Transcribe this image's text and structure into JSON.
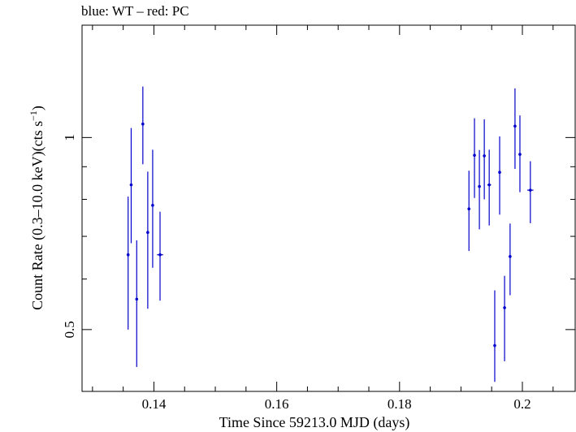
{
  "chart_data": {
    "type": "scatter",
    "title": "blue: WT – red: PC",
    "xlabel": "Time Since 59213.0 MJD (days)",
    "ylabel_main": "Count Rate (0.3–10.0 keV)(cts s",
    "ylabel_sup": "−1",
    "ylabel_close": ")",
    "xlim": [
      0.1283,
      0.2086
    ],
    "ylim": [
      0.4,
      1.5
    ],
    "y_scale": "log",
    "x_ticks": [
      {
        "value": 0.14,
        "label": "0.14"
      },
      {
        "value": 0.16,
        "label": "0.16"
      },
      {
        "value": 0.18,
        "label": "0.18"
      },
      {
        "value": 0.2,
        "label": "0.2"
      }
    ],
    "y_ticks": [
      {
        "value": 0.5,
        "label": "0.5"
      },
      {
        "value": 1,
        "label": "1"
      }
    ],
    "series": [
      {
        "color": "#0000cc",
        "points": [
          {
            "x": 0.1358,
            "y": 0.655,
            "ylo": 0.5,
            "yhi": 0.808,
            "xerr": 0.0002
          },
          {
            "x": 0.1363,
            "y": 0.843,
            "ylo": 0.683,
            "yhi": 1.035,
            "xerr": 0.0002
          },
          {
            "x": 0.1372,
            "y": 0.558,
            "ylo": 0.437,
            "yhi": 0.69,
            "xerr": 0.0002
          },
          {
            "x": 0.1382,
            "y": 1.05,
            "ylo": 0.908,
            "yhi": 1.202,
            "xerr": 0.0002
          },
          {
            "x": 0.139,
            "y": 0.71,
            "ylo": 0.539,
            "yhi": 0.884,
            "xerr": 0.0002
          },
          {
            "x": 0.1398,
            "y": 0.783,
            "ylo": 0.625,
            "yhi": 0.957,
            "xerr": 0.0002
          },
          {
            "x": 0.141,
            "y": 0.655,
            "ylo": 0.555,
            "yhi": 0.765,
            "xerr": 0.0005
          },
          {
            "x": 0.1913,
            "y": 0.773,
            "ylo": 0.664,
            "yhi": 0.887,
            "xerr": 0.0002
          },
          {
            "x": 0.1922,
            "y": 0.938,
            "ylo": 0.804,
            "yhi": 1.072,
            "xerr": 0.0002
          },
          {
            "x": 0.193,
            "y": 0.838,
            "ylo": 0.718,
            "yhi": 0.956,
            "xerr": 0.0002
          },
          {
            "x": 0.1938,
            "y": 0.936,
            "ylo": 0.8,
            "yhi": 1.068,
            "xerr": 0.0002
          },
          {
            "x": 0.1946,
            "y": 0.843,
            "ylo": 0.728,
            "yhi": 0.957,
            "xerr": 0.0003
          },
          {
            "x": 0.1955,
            "y": 0.472,
            "ylo": 0.414,
            "yhi": 0.576,
            "xerr": 0.0002
          },
          {
            "x": 0.1963,
            "y": 0.882,
            "ylo": 0.757,
            "yhi": 1.004,
            "xerr": 0.0002
          },
          {
            "x": 0.1971,
            "y": 0.541,
            "ylo": 0.446,
            "yhi": 0.607,
            "xerr": 0.0002
          },
          {
            "x": 0.198,
            "y": 0.651,
            "ylo": 0.566,
            "yhi": 0.733,
            "xerr": 0.0002
          },
          {
            "x": 0.1988,
            "y": 1.042,
            "ylo": 0.893,
            "yhi": 1.194,
            "xerr": 0.0002
          },
          {
            "x": 0.1996,
            "y": 0.941,
            "ylo": 0.821,
            "yhi": 1.083,
            "xerr": 0.0002
          },
          {
            "x": 0.2013,
            "y": 0.827,
            "ylo": 0.734,
            "yhi": 0.918,
            "xerr": 0.0005
          }
        ]
      }
    ]
  }
}
